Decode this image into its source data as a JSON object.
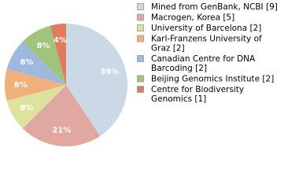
{
  "chart_data": {
    "type": "pie",
    "categories": [
      [
        "Mined from GenBank, NCBI [9]"
      ],
      [
        "Macrogen, Korea [5]"
      ],
      [
        "University of Barcelona [2]"
      ],
      [
        "Karl-Franzens University of",
        "Graz [2]"
      ],
      [
        "Canadian Centre for DNA",
        "Barcoding [2]"
      ],
      [
        "Beijing Genomics Institute [2]"
      ],
      [
        "Centre for Biodiversity",
        "Genomics [1]"
      ]
    ],
    "values": [
      39,
      21,
      8,
      8,
      8,
      8,
      4
    ],
    "value_labels": [
      "39%",
      "21%",
      "8%",
      "8%",
      "8%",
      "8%",
      "4%"
    ],
    "colors": [
      "#cbd8e6",
      "#e0a8a0",
      "#dde29e",
      "#f0b07c",
      "#9fb8dd",
      "#9fc47c",
      "#e07b5c"
    ]
  }
}
